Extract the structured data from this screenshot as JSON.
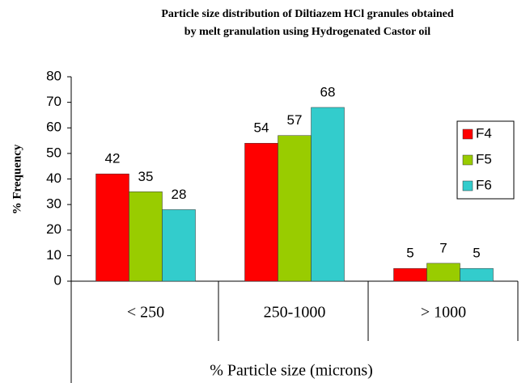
{
  "chart_data": {
    "type": "bar",
    "title": [
      "Particle size distribution of Diltiazem HCl granules obtained",
      "by melt granulation using Hydrogenated Castor oil"
    ],
    "xlabel": "% Particle size (microns)",
    "ylabel": "% Frequency",
    "categories": [
      "< 250",
      "250-1000",
      "> 1000"
    ],
    "series": [
      {
        "name": "F4",
        "color": "#ff0000",
        "values": [
          42,
          54,
          5
        ]
      },
      {
        "name": "F5",
        "color": "#99cc00",
        "values": [
          35,
          57,
          7
        ]
      },
      {
        "name": "F6",
        "color": "#33cccc",
        "values": [
          28,
          68,
          5
        ]
      }
    ],
    "ylim": [
      0,
      80
    ],
    "yticks": [
      0,
      10,
      20,
      30,
      40,
      50,
      60,
      70,
      80
    ],
    "grid": false,
    "legend": "right"
  }
}
